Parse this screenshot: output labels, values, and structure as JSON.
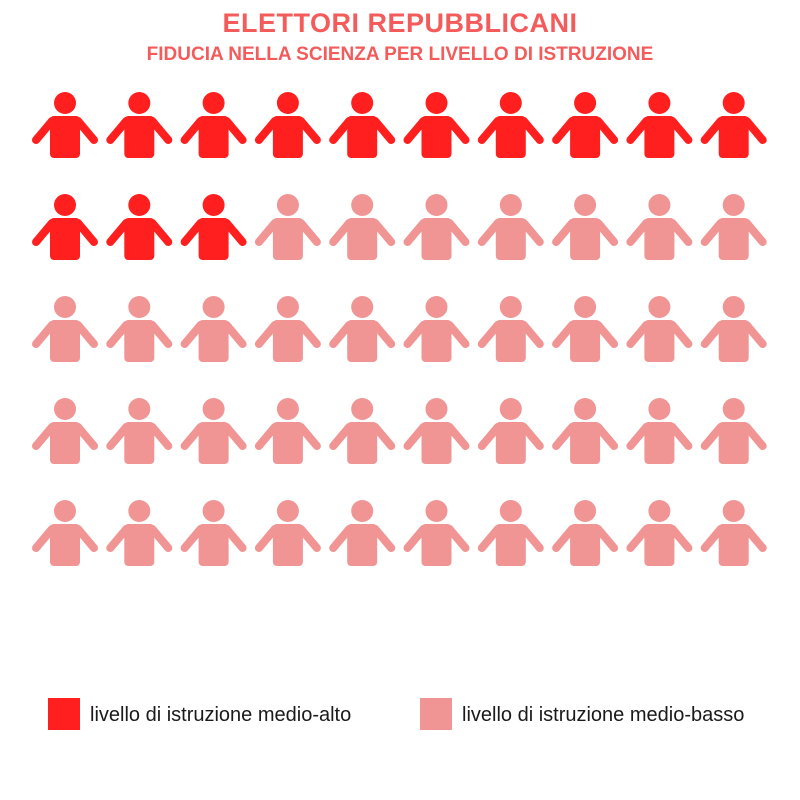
{
  "chart_data": {
    "type": "pictogram",
    "title": "ELETTORI REPUBBLICANI",
    "subtitle": "FIDUCIA NELLA SCIENZA PER LIVELLO DI ISTRUZIONE",
    "total_icons": 50,
    "columns": 10,
    "rows": 5,
    "categories": [
      {
        "label": "livello di istruzione medio-alto",
        "count": 13,
        "color": "#ff1f1f"
      },
      {
        "label": "livello di istruzione medio-basso",
        "count": 37,
        "color": "#f09494"
      }
    ],
    "title_color": "#f45b5b",
    "legend_position": "bottom"
  }
}
